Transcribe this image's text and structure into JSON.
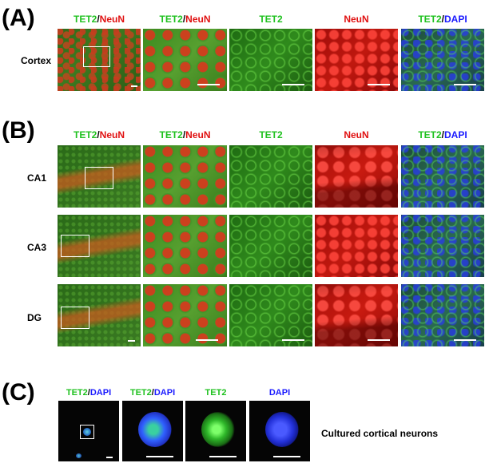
{
  "panels": {
    "a": {
      "letter": "(A)"
    },
    "b": {
      "letter": "(B)"
    },
    "c": {
      "letter": "(C)"
    }
  },
  "headers": {
    "tet2": "TET2",
    "slash": "/",
    "neun": "NeuN",
    "dapi": "DAPI"
  },
  "rows": {
    "cortex": "Cortex",
    "ca1": "CA1",
    "ca3": "CA3",
    "dg": "DG"
  },
  "panel_c_caption": "Cultured cortical neurons",
  "colors": {
    "green": "#1fc11f",
    "red": "#e01010",
    "blue": "#1a1aff"
  }
}
